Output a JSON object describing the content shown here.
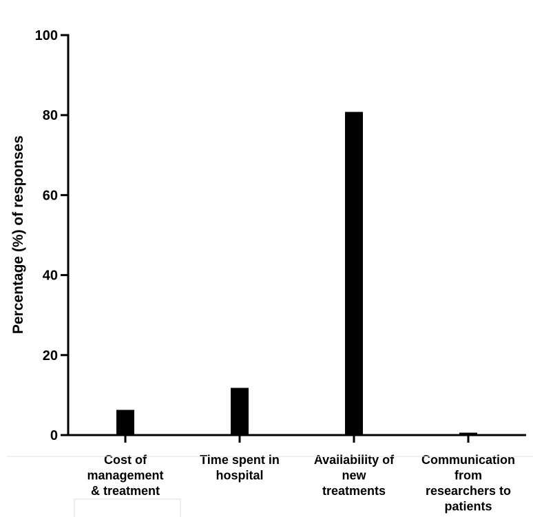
{
  "chart_data": {
    "type": "bar",
    "title": "",
    "xlabel": "",
    "ylabel": "Percentage (%) of responses",
    "ylim": [
      0,
      100
    ],
    "yticks": [
      0,
      20,
      40,
      60,
      80,
      100
    ],
    "grid": false,
    "bar_color": "#000000",
    "categories": [
      [
        "Cost of",
        "management",
        "& treatment"
      ],
      [
        "Time spent in",
        "hospital"
      ],
      [
        "Availability of",
        "new",
        "treatments"
      ],
      [
        "Communication",
        "from",
        "researchers to",
        "patients"
      ]
    ],
    "values": [
      6.3,
      11.8,
      80.8,
      0.6
    ]
  }
}
